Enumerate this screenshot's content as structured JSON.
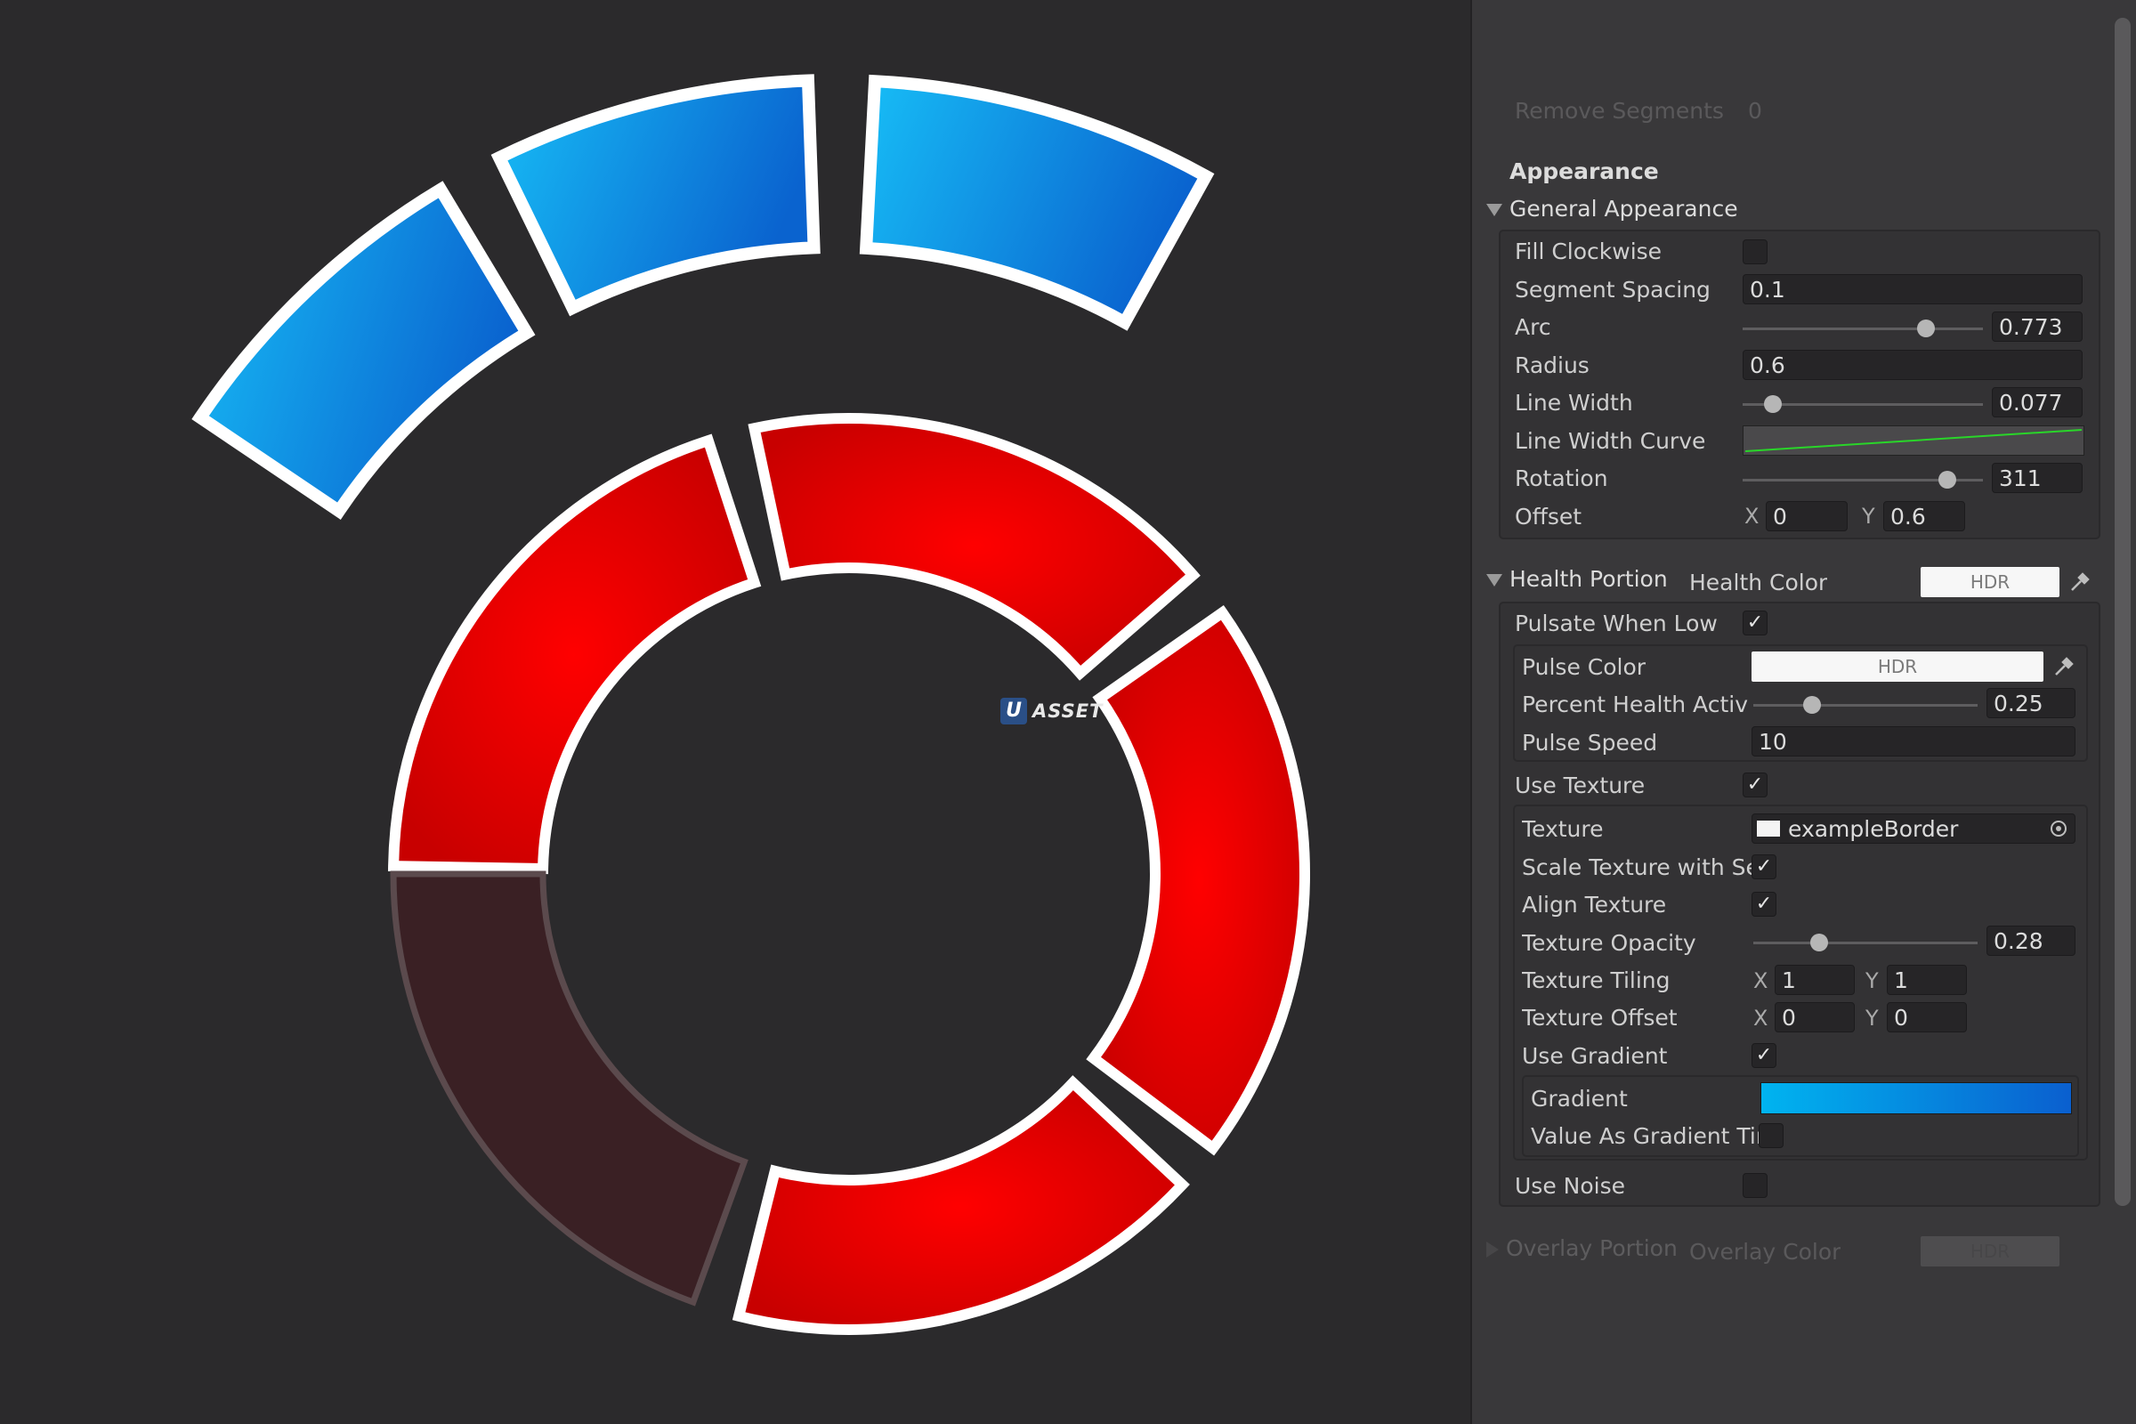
{
  "scene": {
    "watermark_text": "ASSET",
    "watermark_logo": "U",
    "colors": {
      "blue_light": "#13b4f2",
      "blue_dark": "#0a6fd4",
      "red": "#e00000",
      "red_empty": "#3a2024",
      "outline": "#ffffff"
    }
  },
  "inspector": {
    "faded_top": {
      "label": "Remove Segments",
      "value": "0"
    },
    "section_title": "Appearance",
    "general": {
      "title": "General Appearance",
      "fill_clockwise": {
        "label": "Fill Clockwise",
        "checked": false
      },
      "segment_spacing": {
        "label": "Segment Spacing",
        "value": "0.1"
      },
      "arc": {
        "label": "Arc",
        "value": "0.773",
        "fraction": 0.773
      },
      "radius": {
        "label": "Radius",
        "value": "0.6"
      },
      "line_width": {
        "label": "Line Width",
        "value": "0.077",
        "fraction": 0.1
      },
      "line_width_curve": {
        "label": "Line Width Curve"
      },
      "rotation": {
        "label": "Rotation",
        "value": "311",
        "fraction": 0.86
      },
      "offset": {
        "label": "Offset",
        "x_label": "X",
        "x": "0",
        "y_label": "Y",
        "y": "0.6"
      }
    },
    "health": {
      "title": "Health Portion",
      "color_label": "Health Color",
      "hdr": "HDR",
      "pulsate": {
        "label": "Pulsate When Low",
        "checked": true
      },
      "pulse_color": {
        "label": "Pulse Color",
        "hdr": "HDR"
      },
      "percent": {
        "label": "Percent Health Activa",
        "value": "0.25",
        "fraction": 0.25
      },
      "pulse_speed": {
        "label": "Pulse Speed",
        "value": "10"
      },
      "use_texture": {
        "label": "Use Texture",
        "checked": true
      },
      "texture": {
        "label": "Texture",
        "value": "exampleBorder"
      },
      "scale_texture": {
        "label": "Scale Texture with Se",
        "checked": true
      },
      "align_texture": {
        "label": "Align Texture",
        "checked": true
      },
      "texture_opacity": {
        "label": "Texture Opacity",
        "value": "0.28",
        "fraction": 0.28
      },
      "texture_tiling": {
        "label": "Texture Tiling",
        "x_label": "X",
        "x": "1",
        "y_label": "Y",
        "y": "1"
      },
      "texture_offset": {
        "label": "Texture Offset",
        "x_label": "X",
        "x": "0",
        "y_label": "Y",
        "y": "0"
      },
      "use_gradient": {
        "label": "Use Gradient",
        "checked": true
      },
      "gradient": {
        "label": "Gradient",
        "from": "#00b4f0",
        "to": "#0a5fcf"
      },
      "value_as_gradient": {
        "label": "Value As Gradient Tin",
        "checked": false
      },
      "use_noise": {
        "label": "Use Noise",
        "checked": false
      }
    },
    "faded_bottom": {
      "title": "Overlay Portion",
      "color_label": "Overlay Color",
      "hdr": "HDR"
    }
  }
}
